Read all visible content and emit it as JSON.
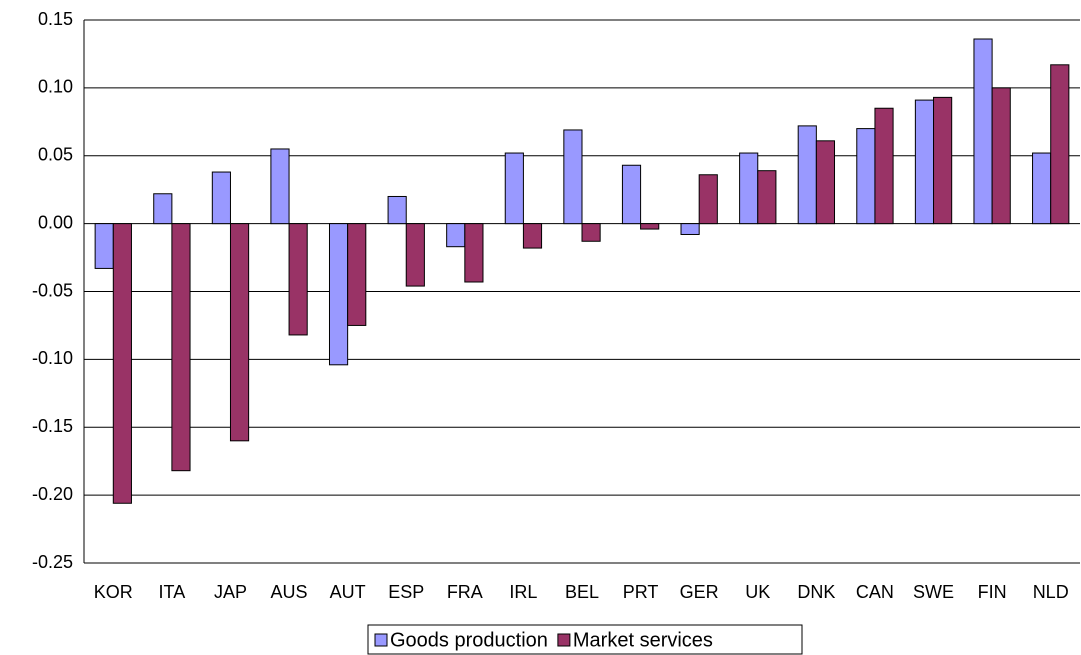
{
  "chart_data": {
    "type": "bar",
    "categories": [
      "KOR",
      "ITA",
      "JAP",
      "AUS",
      "AUT",
      "ESP",
      "FRA",
      "IRL",
      "BEL",
      "PRT",
      "GER",
      "UK",
      "DNK",
      "CAN",
      "SWE",
      "FIN",
      "NLD"
    ],
    "series": [
      {
        "name": "Goods production",
        "color": "#9999ff",
        "values": [
          -0.033,
          0.022,
          0.038,
          0.055,
          -0.104,
          0.02,
          -0.017,
          0.052,
          0.069,
          0.043,
          -0.008,
          0.052,
          0.072,
          0.07,
          0.091,
          0.136,
          0.052
        ]
      },
      {
        "name": "Market services",
        "color": "#993366",
        "values": [
          -0.206,
          -0.182,
          -0.16,
          -0.082,
          -0.075,
          -0.046,
          -0.043,
          -0.018,
          -0.013,
          -0.004,
          0.036,
          0.039,
          0.061,
          0.085,
          0.093,
          0.1,
          0.117
        ]
      }
    ],
    "ylim": [
      -0.25,
      0.15
    ],
    "yticks": [
      -0.25,
      {
        "value": -0.2,
        "label": "-0.20"
      },
      {
        "value": -0.15,
        "label": "-0.15"
      },
      {
        "value": -0.1,
        "label": "-0.10"
      },
      -0.05,
      {
        "value": 0,
        "label": "0.00"
      },
      0.05,
      {
        "value": 0.1,
        "label": "0.10"
      },
      0.15
    ],
    "grid": true,
    "legend": "bottom"
  }
}
